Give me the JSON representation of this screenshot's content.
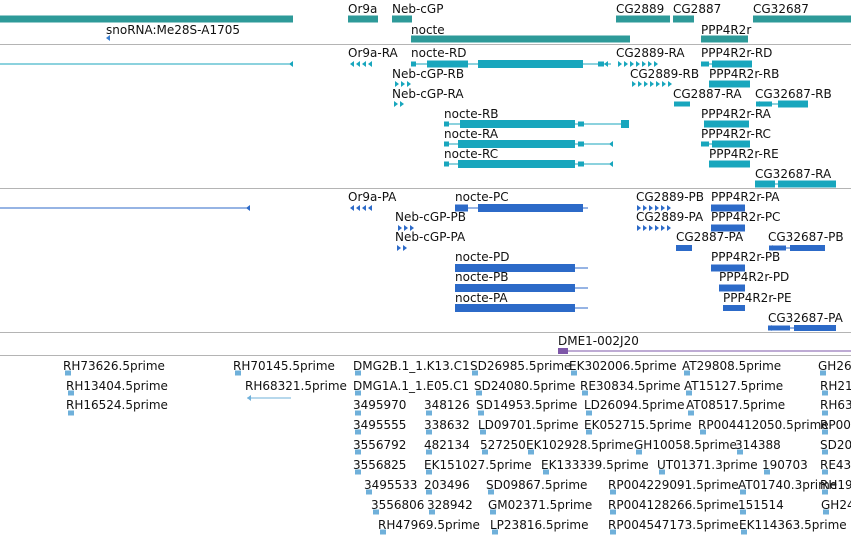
{
  "colors": {
    "gene": "#2E9A99",
    "mrna": "#18A6BD",
    "cds": "#2C6AC8",
    "clone": "#7E57A8",
    "est": "#6FB0DA",
    "separator": "#b4b4b4"
  },
  "tracks": {
    "genes": {
      "labels": [
        "snoRNA:Me28S-A1705",
        "Or9a",
        "Neb-cGP",
        "nocte",
        "CG2889",
        "CG2887",
        "PPP4R2r",
        "CG32687"
      ]
    },
    "transcripts": {
      "labels": [
        "Or9a-RA",
        "nocte-RD",
        "CG2889-RA",
        "PPP4R2r-RD",
        "Neb-cGP-RB",
        "CG2889-RB",
        "PPP4R2r-RB",
        "Neb-cGP-RA",
        "CG2887-RA",
        "CG32687-RB",
        "nocte-RB",
        "PPP4R2r-RA",
        "nocte-RA",
        "PPP4R2r-RC",
        "nocte-RC",
        "PPP4R2r-RE",
        "CG32687-RA"
      ]
    },
    "proteins": {
      "labels": [
        "Or9a-PA",
        "nocte-PC",
        "CG2889-PB",
        "PPP4R2r-PA",
        "Neb-cGP-PB",
        "CG2889-PA",
        "PPP4R2r-PC",
        "Neb-cGP-PA",
        "CG2887-PA",
        "CG32687-PB",
        "nocte-PD",
        "PPP4R2r-PB",
        "nocte-PB",
        "PPP4R2r-PD",
        "nocte-PA",
        "PPP4R2r-PE",
        "CG32687-PA"
      ]
    },
    "clones": {
      "labels": [
        "DME1-002J20"
      ]
    },
    "ests": {
      "labels": [
        "RH73626.5prime",
        "RH70145.5prime",
        "DMG2B.1_1.K13.C1",
        "SD26985.5prime",
        "EK302006.5prime",
        "AT29808.5prime",
        "GH26",
        "RH13404.5prime",
        "RH68321.5prime",
        "DMG1A.1_1.E05.C1",
        "SD24080.5prime",
        "RE30834.5prime",
        "AT15127.5prime",
        "RH21",
        "RH16524.5prime",
        "3495970",
        "348126",
        "SD14953.5prime",
        "LD26094.5prime",
        "AT08517.5prime",
        "RH63",
        "3495555",
        "338632",
        "LD09701.5prime",
        "EK052715.5prime",
        "RP004412050.5prime",
        "RP00",
        "3556792",
        "482134",
        "527250",
        "EK102928.5prime",
        "GH10058.5prime",
        "314388",
        "SD20",
        "3556825",
        "EK151027.5prime",
        "EK133339.5prime",
        "UT01371.3prime",
        "190703",
        "RE43",
        "3495533",
        "203496",
        "SD09867.5prime",
        "RP004229091.5prime",
        "AT01740.3prime",
        "RH19",
        "3556806",
        "328942",
        "GM02371.5prime",
        "RP004128266.5prime",
        "151514",
        "GH24",
        "RH47969.5prime",
        "LP23816.5prime",
        "RP004547173.5prime",
        "EK114363.5prime"
      ]
    }
  }
}
